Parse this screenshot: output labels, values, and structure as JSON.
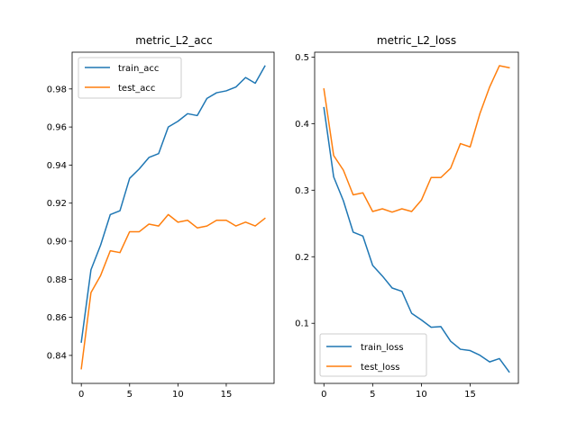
{
  "chart_data": [
    {
      "type": "line",
      "title": "metric_L2_acc",
      "xlabel": "",
      "ylabel": "",
      "x": [
        0,
        1,
        2,
        3,
        4,
        5,
        6,
        7,
        8,
        9,
        10,
        11,
        12,
        13,
        14,
        15,
        16,
        17,
        18,
        19
      ],
      "xlim": [
        -0.95,
        19.95
      ],
      "ylim": [
        0.8253,
        0.9993
      ],
      "xticks": [
        0,
        5,
        10,
        15
      ],
      "xtick_labels": [
        "0",
        "5",
        "10",
        "15"
      ],
      "yticks": [
        0.84,
        0.86,
        0.88,
        0.9,
        0.92,
        0.94,
        0.96,
        0.98
      ],
      "ytick_labels": [
        "0.84",
        "0.86",
        "0.88",
        "0.90",
        "0.92",
        "0.94",
        "0.96",
        "0.98"
      ],
      "grid": false,
      "legend_position": "upper-left",
      "series": [
        {
          "name": "train_acc",
          "color": "#1f77b4",
          "values": [
            0.847,
            0.885,
            0.898,
            0.914,
            0.916,
            0.933,
            0.938,
            0.944,
            0.946,
            0.96,
            0.963,
            0.967,
            0.966,
            0.975,
            0.978,
            0.979,
            0.981,
            0.986,
            0.983,
            0.992
          ]
        },
        {
          "name": "test_acc",
          "color": "#ff7f0e",
          "values": [
            0.833,
            0.873,
            0.882,
            0.895,
            0.894,
            0.905,
            0.905,
            0.909,
            0.908,
            0.914,
            0.91,
            0.911,
            0.907,
            0.908,
            0.911,
            0.911,
            0.908,
            0.91,
            0.908,
            0.912
          ]
        }
      ]
    },
    {
      "type": "line",
      "title": "metric_L2_loss",
      "xlabel": "",
      "ylabel": "",
      "x": [
        0,
        1,
        2,
        3,
        4,
        5,
        6,
        7,
        8,
        9,
        10,
        11,
        12,
        13,
        14,
        15,
        16,
        17,
        18,
        19
      ],
      "xlim": [
        -0.95,
        19.95
      ],
      "ylim": [
        0.0097,
        0.5073
      ],
      "xticks": [
        0,
        5,
        10,
        15
      ],
      "xtick_labels": [
        "0",
        "5",
        "10",
        "15"
      ],
      "yticks": [
        0.1,
        0.2,
        0.3,
        0.4,
        0.5
      ],
      "ytick_labels": [
        "0.1",
        "0.2",
        "0.3",
        "0.4",
        "0.5"
      ],
      "grid": false,
      "legend_position": "lower-left",
      "series": [
        {
          "name": "train_loss",
          "color": "#1f77b4",
          "values": [
            0.424,
            0.32,
            0.284,
            0.237,
            0.231,
            0.187,
            0.171,
            0.153,
            0.148,
            0.115,
            0.105,
            0.094,
            0.095,
            0.073,
            0.061,
            0.059,
            0.052,
            0.042,
            0.047,
            0.027
          ]
        },
        {
          "name": "test_loss",
          "color": "#ff7f0e",
          "values": [
            0.452,
            0.352,
            0.33,
            0.293,
            0.296,
            0.268,
            0.272,
            0.267,
            0.272,
            0.268,
            0.285,
            0.319,
            0.319,
            0.333,
            0.37,
            0.365,
            0.415,
            0.455,
            0.487,
            0.484
          ]
        }
      ]
    }
  ]
}
